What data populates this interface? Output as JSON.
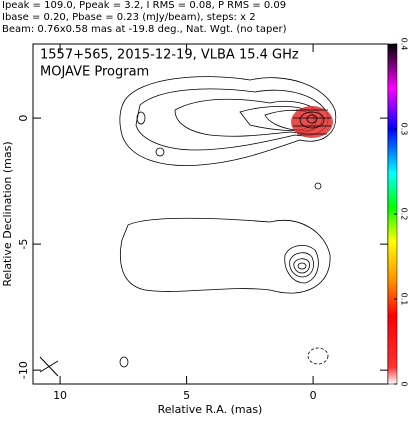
{
  "chart_data": {
    "type": "image",
    "header": [
      "Ipeak = 109.0, Ppeak = 3.2, I RMS = 0.08, P RMS = 0.09",
      "Ibase = 0.20, Pbase = 0.23 (mJy/beam), steps: x 2",
      "Beam: 0.76x0.58 mas at -19.8 deg., Nat. Wgt. (no taper)"
    ],
    "title": "1557+565, 2015-12-19, VLBA 15.4 GHz",
    "subtitle": "MOJAVE Program",
    "xlabel": "Relative R.A. (mas)",
    "ylabel": "Relative Declination (mas)",
    "xlim": [
      11.07,
      -2.96
    ],
    "xticks": [
      10,
      5,
      0
    ],
    "ylim": [
      -10.55,
      2.94
    ],
    "yticks": [
      0,
      -5,
      -10
    ],
    "clim": [
      0,
      0.4
    ],
    "cticks": [
      0,
      0.1,
      0.2,
      0.3,
      0.4
    ]
  }
}
